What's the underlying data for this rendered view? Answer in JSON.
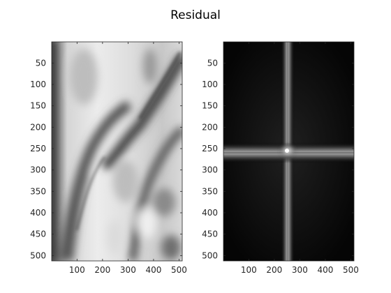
{
  "figure": {
    "title": "Residual"
  },
  "chart_data": [
    {
      "type": "heatmap",
      "colormap": "gray",
      "content": "grayscale spatial-domain image (smooth blurred structure with diagonal dark bands)",
      "xlim": [
        1,
        512
      ],
      "ylim": [
        1,
        512
      ],
      "y_reversed": true,
      "xticks": [
        100,
        200,
        300,
        400,
        500
      ],
      "yticks": [
        50,
        100,
        150,
        200,
        250,
        300,
        350,
        400,
        450,
        500
      ],
      "xtick_labels": [
        "100",
        "200",
        "300",
        "400",
        "500"
      ],
      "ytick_labels": [
        "50",
        "100",
        "150",
        "200",
        "250",
        "300",
        "350",
        "400",
        "450",
        "500"
      ],
      "grid": false
    },
    {
      "type": "heatmap",
      "colormap": "gray",
      "content": "centered Fourier magnitude spectrum: near-black background with bright vertical band at x≈256 and bright horizontal band at y≈256, peak at center",
      "xlim": [
        1,
        512
      ],
      "ylim": [
        1,
        512
      ],
      "y_reversed": true,
      "bright_center": [
        256,
        256
      ],
      "xticks": [
        100,
        200,
        300,
        400,
        500
      ],
      "yticks": [
        50,
        100,
        150,
        200,
        250,
        300,
        350,
        400,
        450,
        500
      ],
      "xtick_labels": [
        "100",
        "200",
        "300",
        "400",
        "500"
      ],
      "ytick_labels": [
        "50",
        "100",
        "150",
        "200",
        "250",
        "300",
        "350",
        "400",
        "450",
        "500"
      ],
      "grid": false
    }
  ]
}
